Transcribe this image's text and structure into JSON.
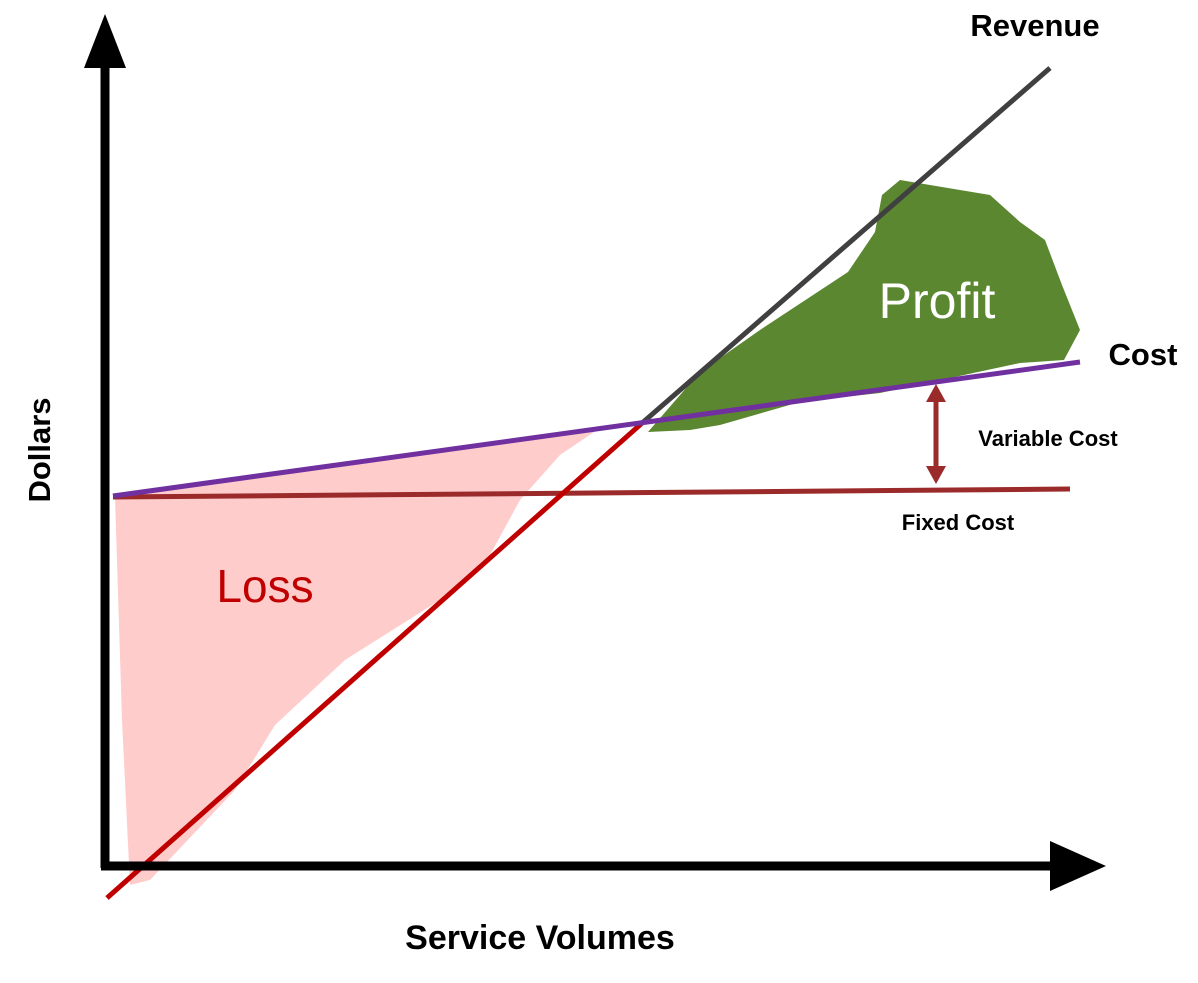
{
  "diagram": {
    "y_axis_label": "Dollars",
    "x_axis_label": "Service Volumes",
    "lines": {
      "revenue": "Revenue",
      "cost": "Cost",
      "variable_cost": "Variable Cost",
      "fixed_cost": "Fixed Cost"
    },
    "regions": {
      "profit": "Profit",
      "loss": "Loss"
    }
  }
}
